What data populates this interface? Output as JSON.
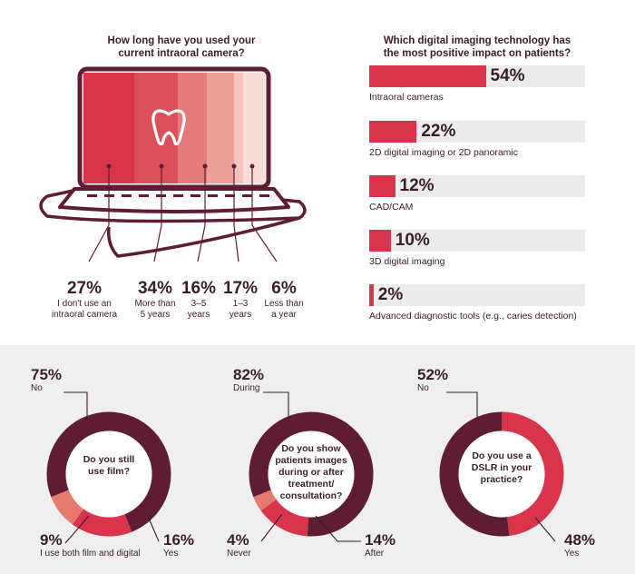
{
  "colors": {
    "maroon": "#5e1d32",
    "red": "#d8344c",
    "salmon": "#e5796e",
    "bar_track": "#ebebeb",
    "text": "#3a1e26",
    "band": "#f0efef"
  },
  "laptop": {
    "title_line1": "How long have you used your",
    "title_line2": "current intraoral camera?",
    "icon": "tooth-icon"
  },
  "bars": {
    "title_line1": "Which digital imaging technology has",
    "title_line2": "the most positive impact on patients?"
  },
  "chart_data": [
    {
      "type": "bar",
      "title": "How long have you used your current intraoral camera?",
      "categories": [
        "I don't use an intraoral camera",
        "More than 5 years",
        "3–5 years",
        "1–3 years",
        "Less than a year"
      ],
      "values": [
        27,
        34,
        16,
        17,
        6
      ],
      "value_labels": [
        "27%",
        "34%",
        "16%",
        "17%",
        "6%"
      ],
      "label_lines": [
        [
          "I don't use an",
          "intraoral camera"
        ],
        [
          "More than",
          "5 years"
        ],
        [
          "3–5",
          "years"
        ],
        [
          "1–3",
          "years"
        ],
        [
          "Less than",
          "a year"
        ]
      ],
      "segment_colors": [
        "#d8344c",
        "#dc4f5a",
        "#e27b79",
        "#ec9e98",
        "#f4c1bb"
      ],
      "unit": "%"
    },
    {
      "type": "bar",
      "orientation": "horizontal",
      "title": "Which digital imaging technology has the most positive impact on patients?",
      "categories": [
        "Intraoral cameras",
        "2D digital imaging or 2D panoramic",
        "CAD/CAM",
        "3D digital imaging",
        "Advanced diagnostic tools (e.g., caries detection)"
      ],
      "values": [
        54,
        22,
        12,
        10,
        2
      ],
      "value_labels": [
        "54%",
        "22%",
        "12%",
        "10%",
        "2%"
      ],
      "xlim": [
        0,
        100
      ],
      "unit": "%"
    },
    {
      "type": "pie",
      "style": "donut",
      "title": "Do you still use film?",
      "title_lines": [
        "Do you still",
        "use film?"
      ],
      "categories": [
        "No",
        "Yes",
        "I use both film and digital"
      ],
      "values": [
        75,
        16,
        9
      ],
      "value_labels": [
        "75%",
        "16%",
        "9%"
      ],
      "colors": [
        "#5e1d32",
        "#d8344c",
        "#e5796e"
      ]
    },
    {
      "type": "pie",
      "style": "donut",
      "title": "Do you show patients images during or after treatment/ consultation?",
      "title_lines": [
        "Do you show",
        "patients images",
        "during or after",
        "treatment/",
        "consultation?"
      ],
      "categories": [
        "During",
        "After",
        "Never"
      ],
      "values": [
        82,
        14,
        4
      ],
      "value_labels": [
        "82%",
        "14%",
        "4%"
      ],
      "colors": [
        "#5e1d32",
        "#d8344c",
        "#e5796e"
      ]
    },
    {
      "type": "pie",
      "style": "donut",
      "title": "Do you use a DSLR in your practice?",
      "title_lines": [
        "Do you use a",
        "DSLR in your",
        "practice?"
      ],
      "categories": [
        "No",
        "Yes"
      ],
      "values": [
        52,
        48
      ],
      "value_labels": [
        "52%",
        "48%"
      ],
      "colors": [
        "#5e1d32",
        "#d8344c"
      ]
    }
  ]
}
